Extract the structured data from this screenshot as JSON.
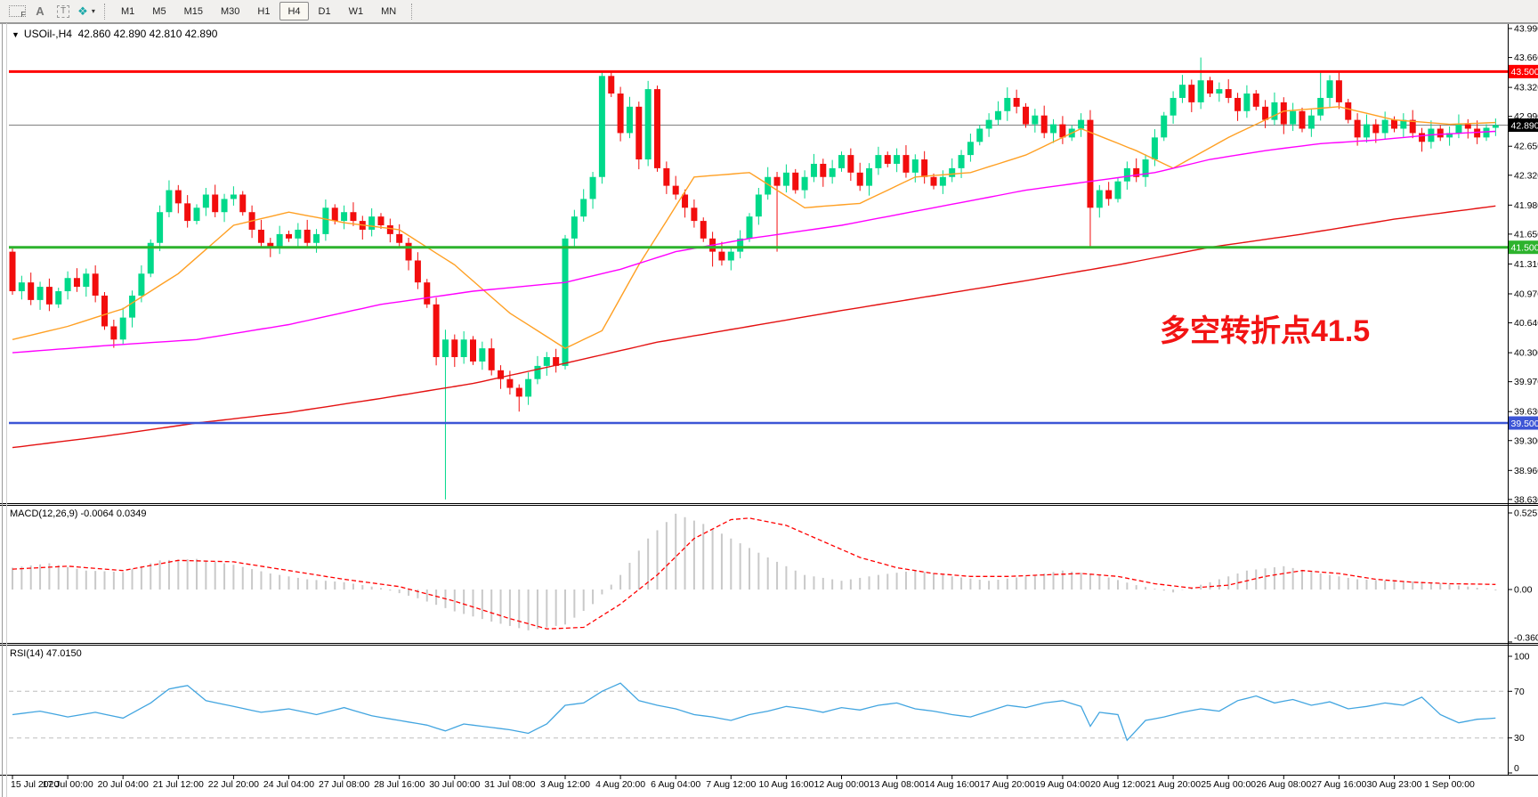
{
  "toolbar": {
    "icons": [
      {
        "name": "chart-shift-f-icon",
        "glyph": "F"
      },
      {
        "name": "text-label-icon",
        "glyph": "A"
      },
      {
        "name": "text-tool-icon",
        "glyph": "T"
      },
      {
        "name": "indicator-diamonds-icon",
        "glyph": "❖"
      },
      {
        "name": "dropdown-caret-icon",
        "glyph": "▾"
      }
    ],
    "timeframes": [
      "M1",
      "M5",
      "M15",
      "M30",
      "H1",
      "H4",
      "D1",
      "W1",
      "MN"
    ],
    "active_timeframe": "H4"
  },
  "chart": {
    "collapse_glyph": "▼",
    "symbol": "USOil-,H4",
    "ohlc": "42.860 42.890 42.810 42.890",
    "annotation": {
      "text": "多空转折点41.5",
      "color": "#f21414"
    },
    "price_axis": {
      "top_price": 44.051,
      "bottom_price": 38.588,
      "ticks": [
        {
          "v": 43.99,
          "label": "43.990"
        },
        {
          "v": 43.66,
          "label": "43.660"
        },
        {
          "v": 43.32,
          "label": "43.320"
        },
        {
          "v": 42.99,
          "label": "42.990"
        },
        {
          "v": 42.65,
          "label": "42.650"
        },
        {
          "v": 42.32,
          "label": "42.320"
        },
        {
          "v": 41.98,
          "label": "41.980"
        },
        {
          "v": 41.65,
          "label": "41.650"
        },
        {
          "v": 41.31,
          "label": "41.310"
        },
        {
          "v": 40.97,
          "label": "40.970"
        },
        {
          "v": 40.64,
          "label": "40.640"
        },
        {
          "v": 40.3,
          "label": "40.300"
        },
        {
          "v": 39.97,
          "label": "39.970"
        },
        {
          "v": 39.63,
          "label": "39.630"
        },
        {
          "v": 39.3,
          "label": "39.300"
        },
        {
          "v": 38.96,
          "label": "38.960"
        },
        {
          "v": 38.63,
          "label": "38.630"
        }
      ]
    },
    "hlines": [
      {
        "price": 43.5,
        "color": "#ff0000",
        "width": 3,
        "label": "43.500",
        "label_bg": "#ff0000",
        "label_fg": "#ffffff"
      },
      {
        "price": 41.5,
        "color": "#2db32d",
        "width": 3,
        "label": "41.500",
        "label_bg": "#2db32d",
        "label_fg": "#ffffff"
      },
      {
        "price": 39.5,
        "color": "#3c55d6",
        "width": 2.5,
        "label": "39.500",
        "label_bg": "#3c55d6",
        "label_fg": "#ffffff"
      }
    ],
    "price_line": {
      "price": 42.89,
      "color": "#808080",
      "width": 1,
      "label": "42.890",
      "label_bg": "#000000",
      "label_fg": "#ffffff"
    },
    "candles": {
      "up_color": "#00d98a",
      "down_color": "#f20d0d",
      "open_first": 41.45,
      "closes": [
        41.0,
        41.1,
        40.9,
        41.05,
        40.85,
        41.0,
        41.15,
        41.05,
        41.2,
        40.95,
        40.6,
        40.45,
        40.7,
        40.95,
        41.2,
        41.55,
        41.9,
        42.15,
        42.0,
        41.8,
        41.95,
        42.1,
        41.9,
        42.05,
        42.1,
        41.9,
        41.7,
        41.55,
        41.5,
        41.65,
        41.6,
        41.7,
        41.55,
        41.65,
        41.95,
        41.8,
        41.9,
        41.8,
        41.7,
        41.85,
        41.75,
        41.65,
        41.55,
        41.35,
        41.1,
        40.85,
        40.25,
        40.45,
        40.25,
        40.45,
        40.2,
        40.35,
        40.1,
        40.0,
        39.9,
        39.8,
        40.0,
        40.15,
        40.25,
        40.15,
        41.6,
        41.85,
        42.05,
        42.3,
        43.45,
        43.25,
        42.8,
        43.1,
        42.5,
        43.3,
        42.4,
        42.2,
        42.1,
        41.95,
        41.8,
        41.6,
        41.45,
        41.35,
        41.45,
        41.6,
        41.85,
        42.1,
        42.3,
        42.2,
        42.35,
        42.15,
        42.3,
        42.45,
        42.3,
        42.4,
        42.55,
        42.35,
        42.2,
        42.4,
        42.55,
        42.45,
        42.55,
        42.35,
        42.5,
        42.3,
        42.2,
        42.3,
        42.4,
        42.55,
        42.7,
        42.85,
        42.95,
        43.05,
        43.2,
        43.1,
        42.9,
        43.0,
        42.8,
        42.9,
        42.75,
        42.85,
        42.95,
        41.95,
        42.15,
        42.05,
        42.25,
        42.4,
        42.3,
        42.5,
        42.75,
        43.0,
        43.2,
        43.35,
        43.15,
        43.4,
        43.25,
        43.3,
        43.2,
        43.05,
        43.25,
        43.1,
        42.95,
        43.15,
        42.9,
        43.05,
        42.85,
        43.0,
        43.2,
        43.4,
        43.15,
        42.95,
        42.75,
        42.9,
        42.8,
        42.95,
        42.85,
        42.95,
        42.8,
        42.7,
        42.85,
        42.75,
        42.8,
        42.9,
        42.85,
        42.75,
        42.86,
        42.89
      ],
      "overrides": {
        "47": {
          "low": 38.63
        },
        "55": {
          "low": 39.63
        },
        "64": {
          "high": 43.5
        },
        "76": {
          "low": 41.28
        },
        "83": {
          "low": 41.45
        },
        "108": {
          "high": 43.32
        },
        "117": {
          "low": 41.5
        },
        "129": {
          "high": 43.66
        },
        "142": {
          "high": 43.5
        }
      }
    },
    "ma_lines": [
      {
        "name": "ma-fast-orange",
        "color": "#ffa024",
        "points": [
          [
            0,
            40.45
          ],
          [
            6,
            40.6
          ],
          [
            12,
            40.8
          ],
          [
            18,
            41.2
          ],
          [
            24,
            41.75
          ],
          [
            30,
            41.9
          ],
          [
            36,
            41.78
          ],
          [
            42,
            41.7
          ],
          [
            48,
            41.3
          ],
          [
            54,
            40.75
          ],
          [
            60,
            40.35
          ],
          [
            64,
            40.55
          ],
          [
            68,
            41.3
          ],
          [
            74,
            42.3
          ],
          [
            80,
            42.35
          ],
          [
            86,
            41.95
          ],
          [
            92,
            42.0
          ],
          [
            98,
            42.3
          ],
          [
            104,
            42.35
          ],
          [
            110,
            42.55
          ],
          [
            116,
            42.85
          ],
          [
            122,
            42.6
          ],
          [
            126,
            42.4
          ],
          [
            132,
            42.75
          ],
          [
            138,
            43.05
          ],
          [
            144,
            43.1
          ],
          [
            150,
            42.95
          ],
          [
            156,
            42.9
          ],
          [
            161,
            42.92
          ]
        ]
      },
      {
        "name": "ma-mid-magenta",
        "color": "#ff00ff",
        "points": [
          [
            0,
            40.3
          ],
          [
            10,
            40.38
          ],
          [
            20,
            40.45
          ],
          [
            30,
            40.62
          ],
          [
            40,
            40.85
          ],
          [
            50,
            41.0
          ],
          [
            60,
            41.1
          ],
          [
            66,
            41.25
          ],
          [
            72,
            41.45
          ],
          [
            80,
            41.6
          ],
          [
            90,
            41.75
          ],
          [
            100,
            41.95
          ],
          [
            110,
            42.15
          ],
          [
            117,
            42.25
          ],
          [
            124,
            42.35
          ],
          [
            130,
            42.5
          ],
          [
            136,
            42.6
          ],
          [
            142,
            42.68
          ],
          [
            148,
            42.72
          ],
          [
            154,
            42.78
          ],
          [
            161,
            42.82
          ]
        ]
      },
      {
        "name": "ma-slow-red",
        "color": "#e41111",
        "points": [
          [
            0,
            39.22
          ],
          [
            10,
            39.35
          ],
          [
            20,
            39.5
          ],
          [
            30,
            39.62
          ],
          [
            40,
            39.78
          ],
          [
            50,
            39.95
          ],
          [
            60,
            40.18
          ],
          [
            70,
            40.42
          ],
          [
            80,
            40.6
          ],
          [
            90,
            40.78
          ],
          [
            100,
            40.95
          ],
          [
            110,
            41.12
          ],
          [
            120,
            41.3
          ],
          [
            130,
            41.5
          ],
          [
            140,
            41.65
          ],
          [
            150,
            41.82
          ],
          [
            161,
            41.97
          ]
        ]
      }
    ]
  },
  "macd": {
    "label": "MACD(12,26,9) -0.0064 0.0349",
    "hist_color": "#c9c9c9",
    "signal_color": "#ff0000",
    "scale": [
      {
        "v": 0.5257,
        "label": "0.5257"
      },
      {
        "v": 0,
        "label": "0.00"
      },
      {
        "v": -0.3603,
        "label": "-0.3603"
      }
    ],
    "hist": [
      [
        0,
        0.15
      ],
      [
        4,
        0.18
      ],
      [
        8,
        0.13
      ],
      [
        12,
        0.12
      ],
      [
        16,
        0.2
      ],
      [
        20,
        0.21
      ],
      [
        24,
        0.17
      ],
      [
        28,
        0.11
      ],
      [
        32,
        0.07
      ],
      [
        36,
        0.05
      ],
      [
        40,
        0.01
      ],
      [
        44,
        -0.06
      ],
      [
        48,
        -0.15
      ],
      [
        52,
        -0.22
      ],
      [
        56,
        -0.28
      ],
      [
        60,
        -0.24
      ],
      [
        63,
        -0.1
      ],
      [
        66,
        0.1
      ],
      [
        69,
        0.35
      ],
      [
        72,
        0.52
      ],
      [
        75,
        0.45
      ],
      [
        78,
        0.35
      ],
      [
        82,
        0.22
      ],
      [
        86,
        0.1
      ],
      [
        90,
        0.06
      ],
      [
        94,
        0.1
      ],
      [
        98,
        0.13
      ],
      [
        102,
        0.09
      ],
      [
        106,
        0.06
      ],
      [
        110,
        0.09
      ],
      [
        114,
        0.13
      ],
      [
        118,
        0.1
      ],
      [
        122,
        0.03
      ],
      [
        126,
        -0.02
      ],
      [
        130,
        0.05
      ],
      [
        134,
        0.13
      ],
      [
        138,
        0.16
      ],
      [
        142,
        0.11
      ],
      [
        146,
        0.07
      ],
      [
        150,
        0.06
      ],
      [
        154,
        0.05
      ],
      [
        158,
        0.02
      ],
      [
        161,
        -0.006
      ]
    ],
    "signal": [
      [
        0,
        0.14
      ],
      [
        6,
        0.16
      ],
      [
        12,
        0.13
      ],
      [
        18,
        0.2
      ],
      [
        24,
        0.19
      ],
      [
        30,
        0.13
      ],
      [
        36,
        0.07
      ],
      [
        42,
        0.02
      ],
      [
        48,
        -0.08
      ],
      [
        54,
        -0.2
      ],
      [
        58,
        -0.27
      ],
      [
        62,
        -0.26
      ],
      [
        66,
        -0.1
      ],
      [
        70,
        0.1
      ],
      [
        74,
        0.35
      ],
      [
        78,
        0.48
      ],
      [
        80,
        0.49
      ],
      [
        84,
        0.44
      ],
      [
        88,
        0.33
      ],
      [
        92,
        0.22
      ],
      [
        96,
        0.15
      ],
      [
        100,
        0.11
      ],
      [
        104,
        0.09
      ],
      [
        108,
        0.09
      ],
      [
        112,
        0.1
      ],
      [
        116,
        0.11
      ],
      [
        120,
        0.09
      ],
      [
        124,
        0.04
      ],
      [
        128,
        0.01
      ],
      [
        132,
        0.03
      ],
      [
        136,
        0.09
      ],
      [
        140,
        0.13
      ],
      [
        144,
        0.11
      ],
      [
        148,
        0.07
      ],
      [
        152,
        0.05
      ],
      [
        156,
        0.04
      ],
      [
        161,
        0.035
      ]
    ]
  },
  "rsi": {
    "label": "RSI(14) 47.0150",
    "color": "#42a5e0",
    "levels": [
      {
        "v": 100,
        "label": "100",
        "line": false
      },
      {
        "v": 70,
        "label": "70",
        "line": true
      },
      {
        "v": 30,
        "label": "30",
        "line": true
      },
      {
        "v": 0,
        "label": "0",
        "line": false
      }
    ],
    "points": [
      [
        0,
        50
      ],
      [
        3,
        53
      ],
      [
        6,
        48
      ],
      [
        9,
        52
      ],
      [
        12,
        47
      ],
      [
        15,
        60
      ],
      [
        17,
        72
      ],
      [
        19,
        75
      ],
      [
        21,
        62
      ],
      [
        24,
        57
      ],
      [
        27,
        52
      ],
      [
        30,
        55
      ],
      [
        33,
        50
      ],
      [
        36,
        56
      ],
      [
        39,
        49
      ],
      [
        42,
        45
      ],
      [
        45,
        41
      ],
      [
        47,
        36
      ],
      [
        49,
        42
      ],
      [
        51,
        40
      ],
      [
        54,
        37
      ],
      [
        56,
        34
      ],
      [
        58,
        42
      ],
      [
        60,
        58
      ],
      [
        62,
        60
      ],
      [
        64,
        70
      ],
      [
        66,
        77
      ],
      [
        68,
        62
      ],
      [
        70,
        58
      ],
      [
        72,
        55
      ],
      [
        74,
        50
      ],
      [
        76,
        48
      ],
      [
        78,
        45
      ],
      [
        80,
        50
      ],
      [
        82,
        53
      ],
      [
        84,
        57
      ],
      [
        86,
        55
      ],
      [
        88,
        52
      ],
      [
        90,
        56
      ],
      [
        92,
        54
      ],
      [
        94,
        58
      ],
      [
        96,
        60
      ],
      [
        98,
        55
      ],
      [
        100,
        53
      ],
      [
        102,
        50
      ],
      [
        104,
        48
      ],
      [
        106,
        53
      ],
      [
        108,
        58
      ],
      [
        110,
        56
      ],
      [
        112,
        60
      ],
      [
        114,
        62
      ],
      [
        116,
        57
      ],
      [
        117,
        40
      ],
      [
        118,
        52
      ],
      [
        120,
        50
      ],
      [
        121,
        28
      ],
      [
        123,
        45
      ],
      [
        125,
        48
      ],
      [
        127,
        52
      ],
      [
        129,
        55
      ],
      [
        131,
        53
      ],
      [
        133,
        62
      ],
      [
        135,
        66
      ],
      [
        137,
        60
      ],
      [
        139,
        63
      ],
      [
        141,
        58
      ],
      [
        143,
        61
      ],
      [
        145,
        55
      ],
      [
        147,
        57
      ],
      [
        149,
        60
      ],
      [
        151,
        58
      ],
      [
        153,
        65
      ],
      [
        155,
        50
      ],
      [
        157,
        43
      ],
      [
        159,
        46
      ],
      [
        161,
        47
      ]
    ]
  },
  "time_axis": {
    "candles_per_label": 6,
    "labels": [
      "15 Jul 2020",
      "17 Jul 00:00",
      "20 Jul 04:00",
      "21 Jul 12:00",
      "22 Jul 20:00",
      "24 Jul 04:00",
      "27 Jul 08:00",
      "28 Jul 16:00",
      "30 Jul 00:00",
      "31 Jul 08:00",
      "3 Aug 12:00",
      "4 Aug 20:00",
      "6 Aug 04:00",
      "7 Aug 12:00",
      "10 Aug 16:00",
      "12 Aug 00:00",
      "13 Aug 08:00",
      "14 Aug 16:00",
      "17 Aug 20:00",
      "19 Aug 04:00",
      "20 Aug 12:00",
      "21 Aug 20:00",
      "25 Aug 00:00",
      "26 Aug 08:00",
      "27 Aug 16:00",
      "30 Aug 23:00",
      "1 Sep 00:00"
    ]
  }
}
